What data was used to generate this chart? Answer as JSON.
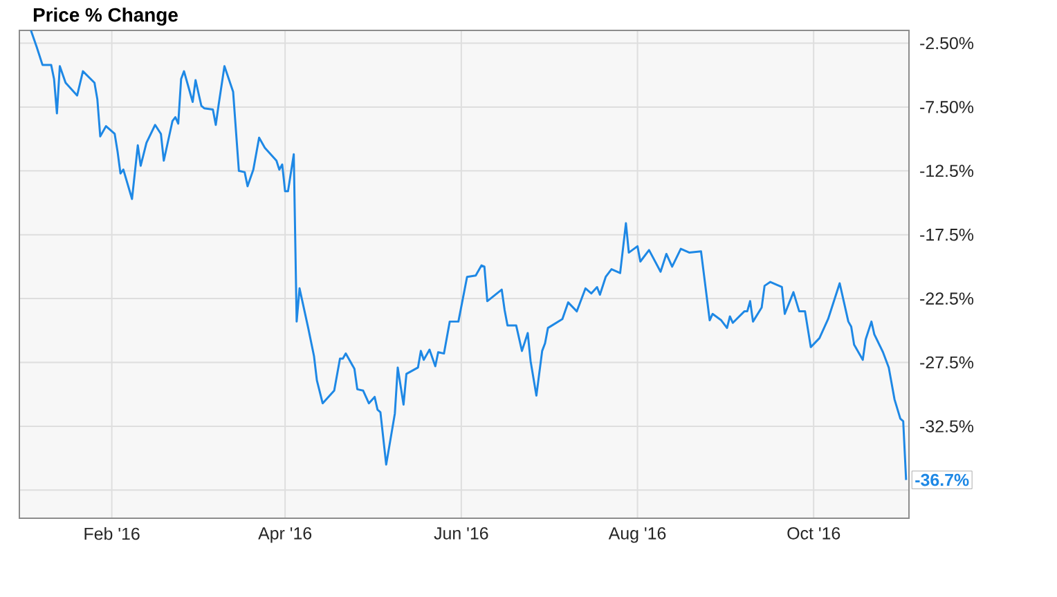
{
  "chart_data": {
    "type": "line",
    "title": "Price % Change",
    "color": "#1e88e5",
    "grid": true,
    "line_style": "solid",
    "xlim": [
      "2015-12-31",
      "2016-11-03"
    ],
    "xticks": [
      {
        "value": "2016-02-01",
        "label": "Feb '16"
      },
      {
        "value": "2016-04-01",
        "label": "Apr '16"
      },
      {
        "value": "2016-06-01",
        "label": "Jun '16"
      },
      {
        "value": "2016-08-01",
        "label": "Aug '16"
      },
      {
        "value": "2016-10-01",
        "label": "Oct '16"
      }
    ],
    "ylim": [
      -39.7,
      -1.5
    ],
    "yticks": [
      {
        "value": -2.5,
        "label": "-2.50%"
      },
      {
        "value": -7.5,
        "label": "-7.50%"
      },
      {
        "value": -12.5,
        "label": "-12.5%"
      },
      {
        "value": -17.5,
        "label": "-17.5%"
      },
      {
        "value": -22.5,
        "label": "-22.5%"
      },
      {
        "value": -27.5,
        "label": "-27.5%"
      },
      {
        "value": -32.5,
        "label": "-32.5%"
      },
      {
        "value": -37.5,
        "label": null
      }
    ],
    "annotations": [
      {
        "text": "-36.7%",
        "x": "2016-11-02",
        "y": -36.7
      }
    ],
    "x": [
      "2016-01-04",
      "2016-01-06",
      "2016-01-08",
      "2016-01-11",
      "2016-01-12",
      "2016-01-13",
      "2016-01-14",
      "2016-01-16",
      "2016-01-20",
      "2016-01-22",
      "2016-01-26",
      "2016-01-27",
      "2016-01-28",
      "2016-01-30",
      "2016-02-02",
      "2016-02-03",
      "2016-02-04",
      "2016-02-05",
      "2016-02-08",
      "2016-02-10",
      "2016-02-11",
      "2016-02-13",
      "2016-02-16",
      "2016-02-18",
      "2016-02-19",
      "2016-02-22",
      "2016-02-23",
      "2016-02-24",
      "2016-02-25",
      "2016-02-26",
      "2016-02-29",
      "2016-03-01",
      "2016-03-03",
      "2016-03-04",
      "2016-03-07",
      "2016-03-08",
      "2016-03-09",
      "2016-03-11",
      "2016-03-14",
      "2016-03-16",
      "2016-03-18",
      "2016-03-19",
      "2016-03-21",
      "2016-03-23",
      "2016-03-25",
      "2016-03-29",
      "2016-03-30",
      "2016-03-31",
      "2016-04-01",
      "2016-04-02",
      "2016-04-04",
      "2016-04-05",
      "2016-04-06",
      "2016-04-09",
      "2016-04-11",
      "2016-04-12",
      "2016-04-14",
      "2016-04-18",
      "2016-04-20",
      "2016-04-21",
      "2016-04-22",
      "2016-04-25",
      "2016-04-26",
      "2016-04-28",
      "2016-04-30",
      "2016-05-02",
      "2016-05-03",
      "2016-05-04",
      "2016-05-06",
      "2016-05-09",
      "2016-05-10",
      "2016-05-12",
      "2016-05-13",
      "2016-05-17",
      "2016-05-18",
      "2016-05-19",
      "2016-05-21",
      "2016-05-23",
      "2016-05-24",
      "2016-05-26",
      "2016-05-28",
      "2016-05-30",
      "2016-05-31",
      "2016-06-03",
      "2016-06-06",
      "2016-06-08",
      "2016-06-09",
      "2016-06-10",
      "2016-06-15",
      "2016-06-16",
      "2016-06-17",
      "2016-06-20",
      "2016-06-22",
      "2016-06-24",
      "2016-06-25",
      "2016-06-27",
      "2016-06-29",
      "2016-06-30",
      "2016-07-01",
      "2016-07-06",
      "2016-07-08",
      "2016-07-11",
      "2016-07-14",
      "2016-07-16",
      "2016-07-18",
      "2016-07-19",
      "2016-07-21",
      "2016-07-23",
      "2016-07-26",
      "2016-07-28",
      "2016-07-29",
      "2016-08-01",
      "2016-08-02",
      "2016-08-05",
      "2016-08-09",
      "2016-08-11",
      "2016-08-13",
      "2016-08-16",
      "2016-08-19",
      "2016-08-23",
      "2016-08-26",
      "2016-08-27",
      "2016-08-30",
      "2016-09-01",
      "2016-09-02",
      "2016-09-03",
      "2016-09-07",
      "2016-09-08",
      "2016-09-09",
      "2016-09-10",
      "2016-09-13",
      "2016-09-14",
      "2016-09-16",
      "2016-09-20",
      "2016-09-21",
      "2016-09-24",
      "2016-09-26",
      "2016-09-28",
      "2016-09-30",
      "2016-10-03",
      "2016-10-05",
      "2016-10-06",
      "2016-10-10",
      "2016-10-13",
      "2016-10-14",
      "2016-10-15",
      "2016-10-18",
      "2016-10-19",
      "2016-10-21",
      "2016-10-22",
      "2016-10-25",
      "2016-10-27",
      "2016-10-29",
      "2016-10-31",
      "2016-11-01",
      "2016-11-02"
    ],
    "values": [
      -1.5,
      -2.8,
      -4.2,
      -4.2,
      -5.3,
      -8.0,
      -4.3,
      -5.6,
      -6.6,
      -4.7,
      -5.6,
      -6.9,
      -9.8,
      -9.0,
      -9.6,
      -11.0,
      -12.7,
      -12.4,
      -14.7,
      -10.5,
      -12.1,
      -10.3,
      -8.9,
      -9.6,
      -11.7,
      -8.6,
      -8.3,
      -8.8,
      -5.3,
      -4.7,
      -7.1,
      -5.4,
      -7.4,
      -7.6,
      -7.7,
      -8.9,
      -7.3,
      -4.3,
      -6.3,
      -12.5,
      -12.6,
      -13.7,
      -12.4,
      -9.9,
      -10.7,
      -11.7,
      -12.4,
      -12.0,
      -14.1,
      -14.1,
      -11.2,
      -24.3,
      -21.7,
      -24.8,
      -27.0,
      -28.9,
      -30.7,
      -29.7,
      -27.2,
      -27.2,
      -26.8,
      -28.0,
      -29.6,
      -29.7,
      -30.7,
      -30.2,
      -31.2,
      -31.4,
      -35.5,
      -31.5,
      -27.9,
      -30.8,
      -28.4,
      -27.9,
      -26.6,
      -27.3,
      -26.5,
      -27.8,
      -26.7,
      -26.8,
      -24.3,
      -24.3,
      -24.3,
      -20.8,
      -20.7,
      -19.9,
      -20.0,
      -22.7,
      -21.8,
      -23.4,
      -24.6,
      -24.6,
      -26.6,
      -25.2,
      -27.4,
      -30.1,
      -26.6,
      -26.0,
      -24.8,
      -24.1,
      -22.8,
      -23.5,
      -21.7,
      -22.1,
      -21.6,
      -22.2,
      -20.8,
      -20.2,
      -20.5,
      -16.6,
      -18.9,
      -18.4,
      -19.6,
      -18.7,
      -20.4,
      -19.0,
      -20.0,
      -18.6,
      -18.9,
      -18.8,
      -24.2,
      -23.7,
      -24.2,
      -24.8,
      -23.9,
      -24.4,
      -23.5,
      -23.5,
      -22.7,
      -24.3,
      -23.2,
      -21.5,
      -21.2,
      -21.6,
      -23.7,
      -22.0,
      -23.5,
      -23.5,
      -26.3,
      -25.6,
      -24.6,
      -24.1,
      -21.3,
      -24.3,
      -24.7,
      -26.1,
      -27.3,
      -25.7,
      -24.3,
      -25.3,
      -26.7,
      -27.9,
      -30.4,
      -31.9,
      -32.1,
      -36.7
    ]
  }
}
